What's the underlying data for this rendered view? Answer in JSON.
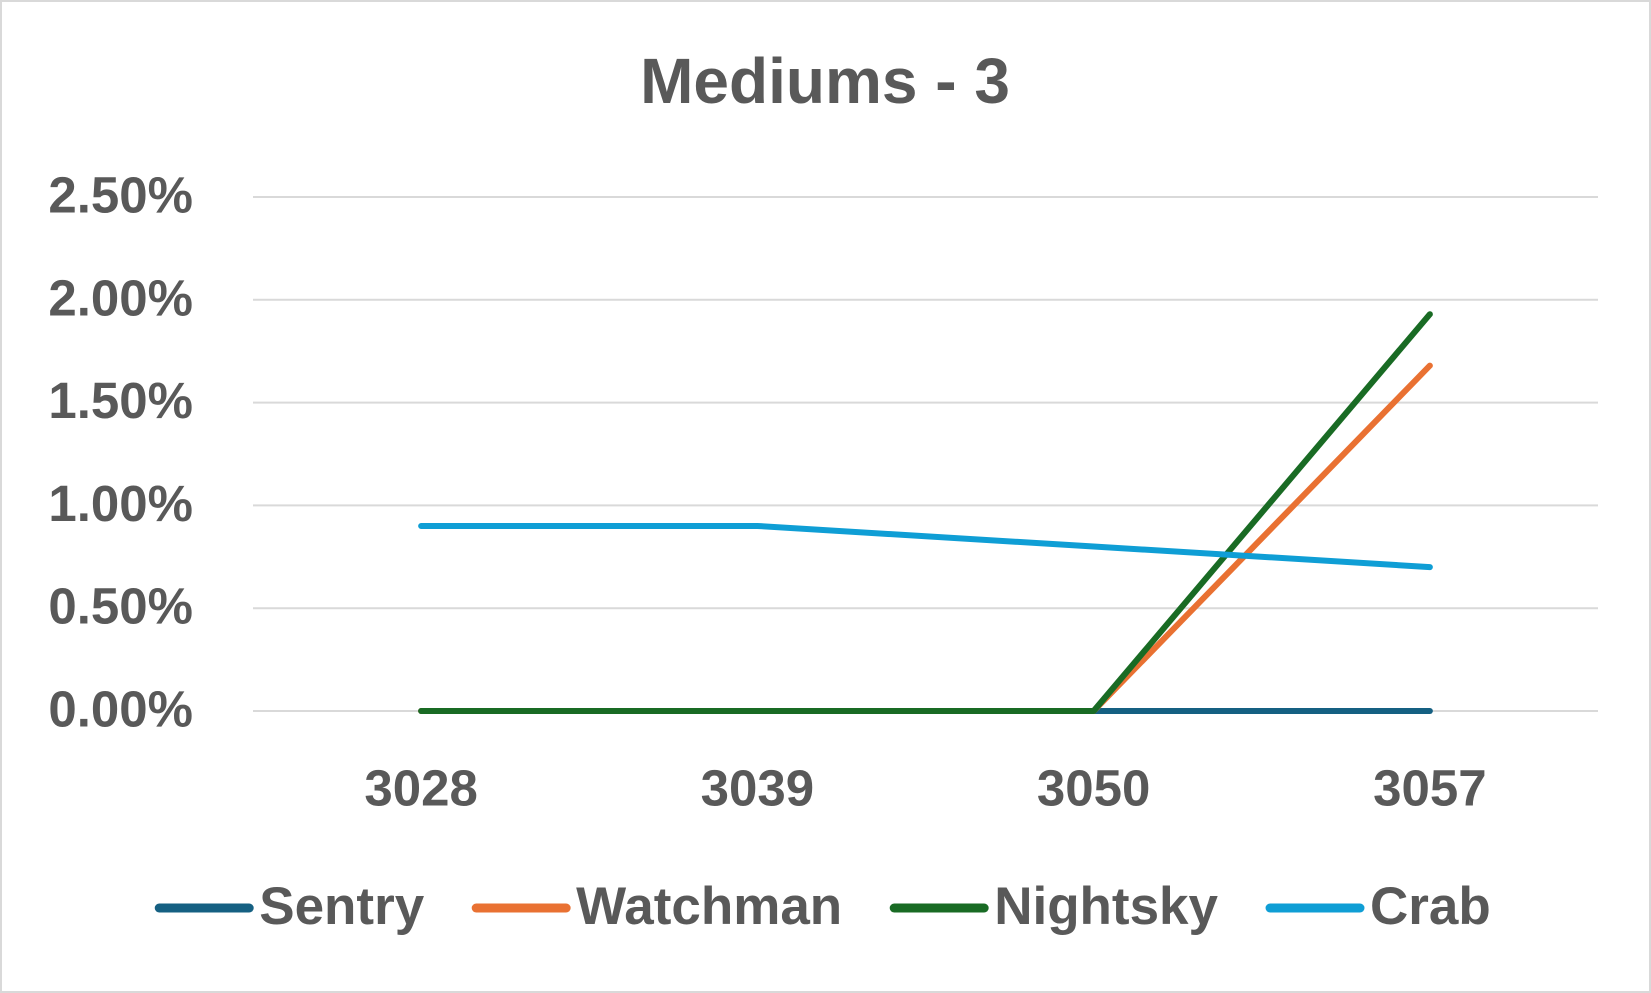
{
  "chart_data": {
    "type": "line",
    "title": "Mediums - 3",
    "categories": [
      "3028",
      "3039",
      "3050",
      "3057"
    ],
    "series": [
      {
        "name": "Sentry",
        "color": "#156082",
        "values": [
          0,
          0,
          0,
          0
        ]
      },
      {
        "name": "Watchman",
        "color": "#e97132",
        "values": [
          0,
          0,
          0,
          1.68
        ]
      },
      {
        "name": "Nightsky",
        "color": "#196b24",
        "values": [
          0,
          0,
          0,
          1.93
        ]
      },
      {
        "name": "Crab",
        "color": "#0f9ed5",
        "values": [
          0.9,
          0.9,
          0.8,
          0.7
        ]
      }
    ],
    "ylim": [
      0,
      2.5
    ],
    "yticks": [
      {
        "value": 0,
        "label": "0.00%"
      },
      {
        "value": 0.5,
        "label": "0.50%"
      },
      {
        "value": 1,
        "label": "1.00%"
      },
      {
        "value": 1.5,
        "label": "1.50%"
      },
      {
        "value": 2,
        "label": "2.00%"
      },
      {
        "value": 2.5,
        "label": "2.50%"
      }
    ],
    "grid": true,
    "legend": "bottom"
  }
}
